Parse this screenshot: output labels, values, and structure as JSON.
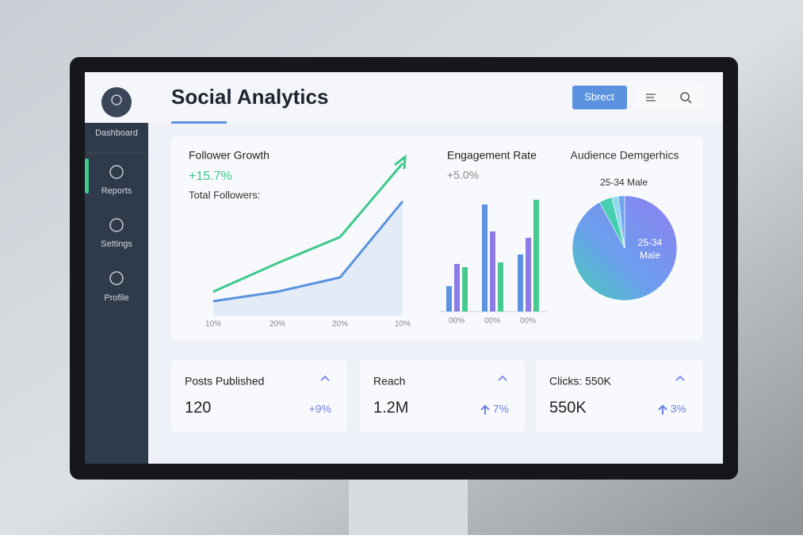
{
  "sidebar": {
    "items": [
      "Dashboard",
      "Reports",
      "Settings",
      "Profile"
    ]
  },
  "header": {
    "title": "Social Analytics",
    "button": "Sbrect"
  },
  "chart_data": [
    {
      "type": "line",
      "title": "Follower Growth",
      "subtitle": "+15.7%",
      "annotation": "Total Followers:",
      "categories": [
        "10%",
        "20%",
        "20%",
        "10%"
      ],
      "series": [
        {
          "color": "#3fc98a",
          "values": [
            9,
            21,
            32,
            63
          ]
        },
        {
          "color": "#5b93e0",
          "values": [
            5,
            9,
            15,
            47
          ]
        }
      ]
    },
    {
      "type": "bar",
      "title": "Engagement Rate",
      "subtitle": "+5.0%",
      "categories": [
        "00%",
        "00%",
        "00%"
      ],
      "series": [
        {
          "color": "#5b93e0",
          "values": [
            32,
            135,
            72
          ]
        },
        {
          "color": "#8d7be6",
          "values": [
            60,
            101,
            93
          ]
        },
        {
          "color": "#47c98f",
          "values": [
            56,
            62,
            141
          ]
        }
      ]
    },
    {
      "type": "pie",
      "title": "Audience Demgerhics",
      "inner_label": [
        "25-34",
        "Male"
      ],
      "categories": [
        "25-34 Male",
        null,
        null,
        null
      ],
      "values": [
        92,
        4,
        2,
        2
      ],
      "colors": [
        "#7f8ff0",
        "#45cfb0",
        "#8fd8ee",
        "#6fa6ef"
      ]
    }
  ],
  "cards": [
    {
      "label": "Posts Published",
      "value": "120",
      "change": "+9%"
    },
    {
      "label": "Reach",
      "value": "1.2M",
      "change": "7%"
    },
    {
      "label": "Clicks: 550K",
      "value": "550K",
      "change": "3%"
    }
  ]
}
